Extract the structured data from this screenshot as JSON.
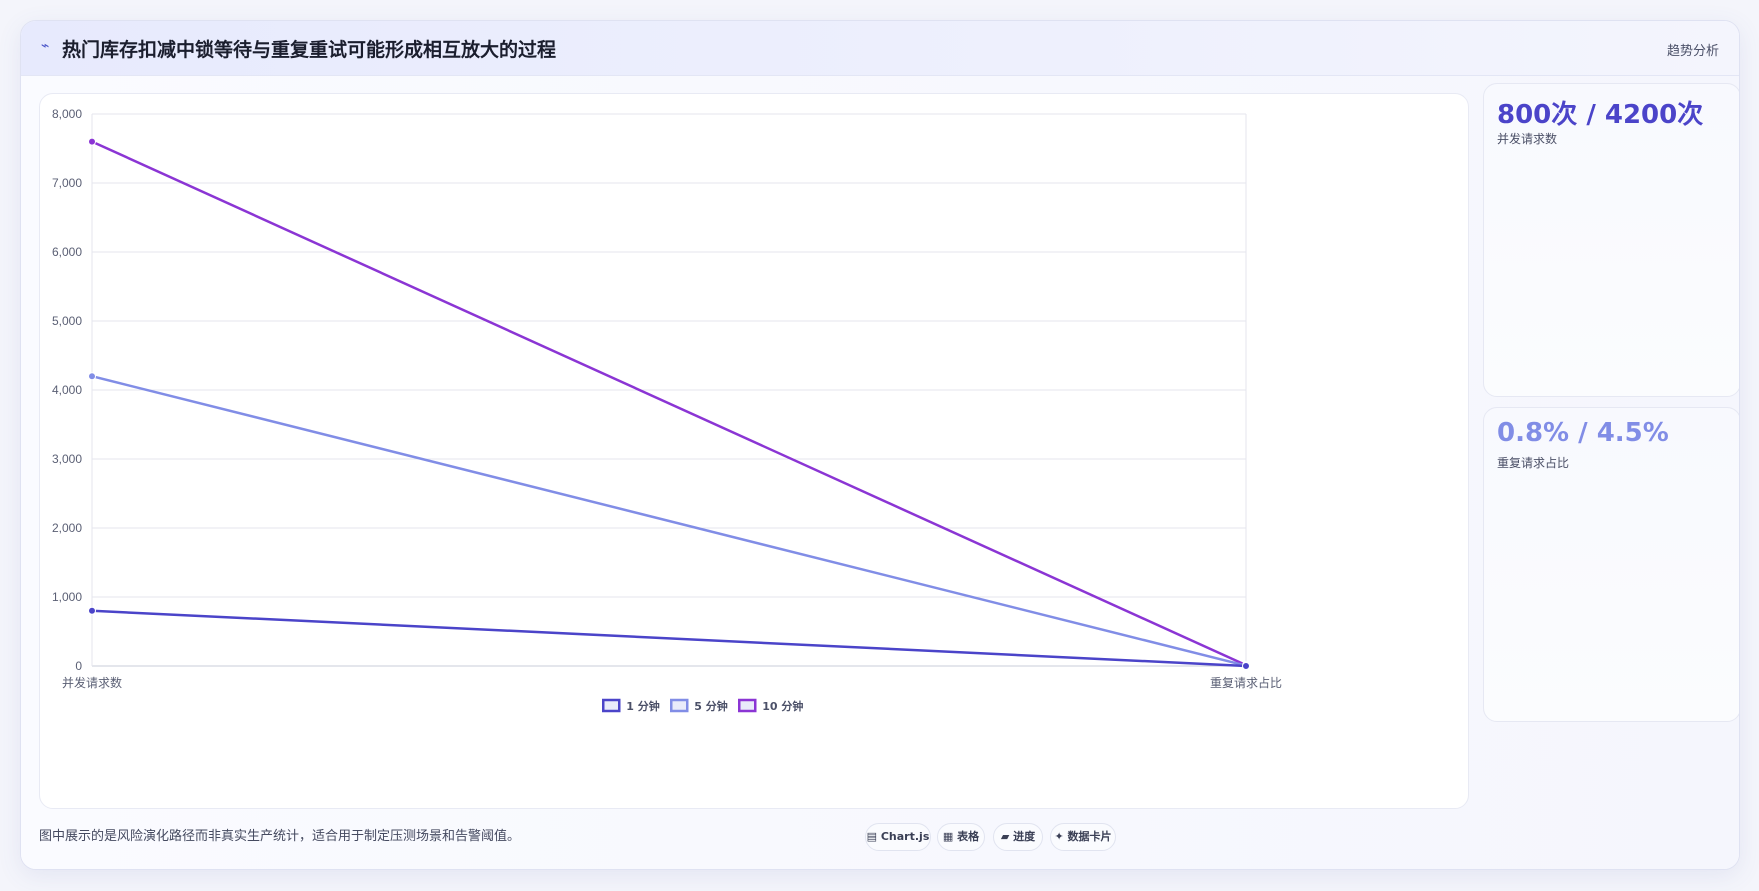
{
  "header": {
    "title": "热门库存扣减中锁等待与重复重试可能形成相互放大的过程",
    "right_label": "趋势分析",
    "icon": "lightning-icon"
  },
  "chart_data": {
    "type": "line",
    "categories": [
      "并发请求数",
      "重复请求占比"
    ],
    "series": [
      {
        "name": "1 分钟",
        "values": [
          800,
          0.8
        ],
        "color": "#4b44c9"
      },
      {
        "name": "5 分钟",
        "values": [
          4200,
          4.5
        ],
        "color": "#818de6"
      },
      {
        "name": "10 分钟",
        "values": [
          7600,
          12.5
        ],
        "color": "#8b35d4"
      }
    ],
    "ylim": [
      0,
      8000
    ],
    "yticks": [
      "0",
      "1,000",
      "2,000",
      "3,000",
      "4,000",
      "5,000",
      "6,000",
      "7,000",
      "8,000"
    ],
    "grid": true,
    "legend": "bottom-center"
  },
  "stats": [
    {
      "value": "800次 / 4200次",
      "label": "并发请求数",
      "color": "#4b44c9"
    },
    {
      "value": "0.8% / 4.5%",
      "label": "重复请求占比",
      "color": "#818de6"
    }
  ],
  "footnote": "图中展示的是风险演化路径而非真实生产统计，适合用于制定压测场景和告警阈值。",
  "tools": [
    {
      "icon": "chart-icon",
      "glyph": "▤",
      "label": "Chart.js"
    },
    {
      "icon": "table-icon",
      "glyph": "▦",
      "label": "表格"
    },
    {
      "icon": "progress-icon",
      "glyph": "▰",
      "label": "进度"
    },
    {
      "icon": "sparkle-icon",
      "glyph": "✦",
      "label": "数据卡片"
    }
  ]
}
